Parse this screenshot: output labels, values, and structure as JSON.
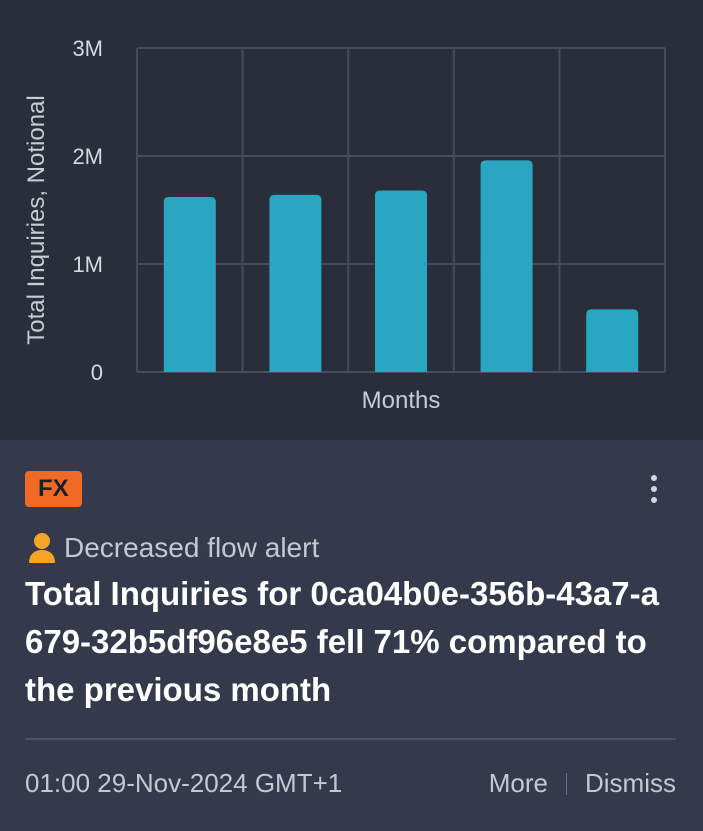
{
  "chart_data": {
    "type": "bar",
    "categories": [
      "",
      "",
      "",
      "",
      ""
    ],
    "values": [
      1620000,
      1640000,
      1680000,
      1960000,
      580000
    ],
    "xlabel": "Months",
    "ylabel": "Total Inquiries, Notional",
    "ylim": [
      0,
      3000000
    ],
    "y_ticks": [
      {
        "value": 0,
        "label": "0"
      },
      {
        "value": 1000000,
        "label": "1M"
      },
      {
        "value": 2000000,
        "label": "2M"
      },
      {
        "value": 3000000,
        "label": "3M"
      }
    ],
    "grid": true,
    "bar_color": "#29a7c2"
  },
  "card": {
    "badge": "FX",
    "badge_color": "#f06a26",
    "alert_type": "Decreased flow alert",
    "alert_icon": "person-icon",
    "headline": "Total Inquiries for 0ca04b0e-356b-43a7-a679-32b5df96e8e5 fell 71% compared to the previous month",
    "timestamp": "01:00 29-Nov-2024 GMT+1",
    "more_label": "More",
    "dismiss_label": "Dismiss",
    "menu_icon": "kebab-menu-icon"
  }
}
